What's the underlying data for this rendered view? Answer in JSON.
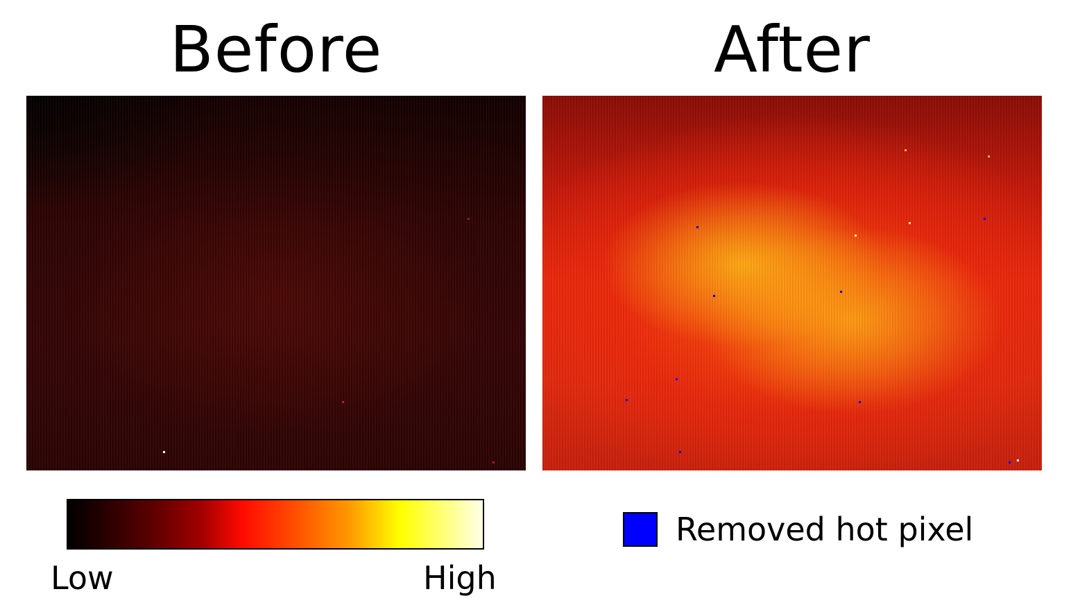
{
  "titles": {
    "before": "Before",
    "after": "After"
  },
  "colorbar": {
    "low_label": "Low",
    "high_label": "High",
    "colormap": "hot",
    "stops": [
      "#000000",
      "#5a0000",
      "#a00000",
      "#ff0a00",
      "#ff4000",
      "#ff9a00",
      "#ffff00",
      "#ffffe8"
    ]
  },
  "legend": {
    "label": "Removed hot pixel",
    "color": "#0000ff"
  },
  "colors": {
    "hot_pixel_marker": "#0000ff"
  }
}
